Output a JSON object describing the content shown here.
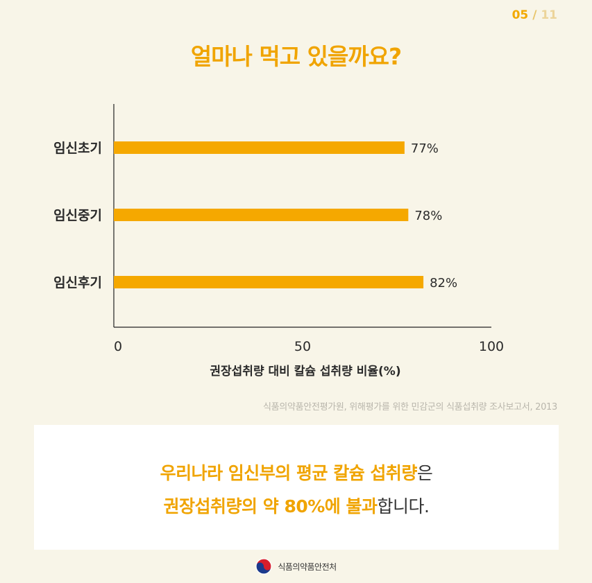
{
  "page": {
    "current": "05",
    "separator": "/",
    "total": "11"
  },
  "title": "얼마나 먹고 있을까요?",
  "chart_data": {
    "type": "bar",
    "orientation": "horizontal",
    "categories": [
      "임신초기",
      "임신중기",
      "임신후기"
    ],
    "values": [
      77,
      78,
      82
    ],
    "value_labels": [
      "77%",
      "78%",
      "82%"
    ],
    "xlabel": "권장섭취량 대비 칼슘 섭취량 비율(%)",
    "xlim": [
      0,
      100
    ],
    "xticks": [
      "0",
      "50",
      "100"
    ],
    "grid": false,
    "bar_color": "#f5a800"
  },
  "source": "식품의약품안전평가원, 위해평가를 위한 민감군의 식품섭취량 조사보고서, 2013",
  "card": {
    "line1_highlight": "우리나라 임신부의 평균 칼슘 섭취량",
    "line1_rest": "은",
    "line2_highlight": "권장섭취량의 약 80%에 불과",
    "line2_rest": "합니다."
  },
  "logo": {
    "text": "식품의약품안전처"
  },
  "colors": {
    "accent": "#f0a400",
    "background": "#f8f5e8",
    "card": "#ffffff"
  }
}
